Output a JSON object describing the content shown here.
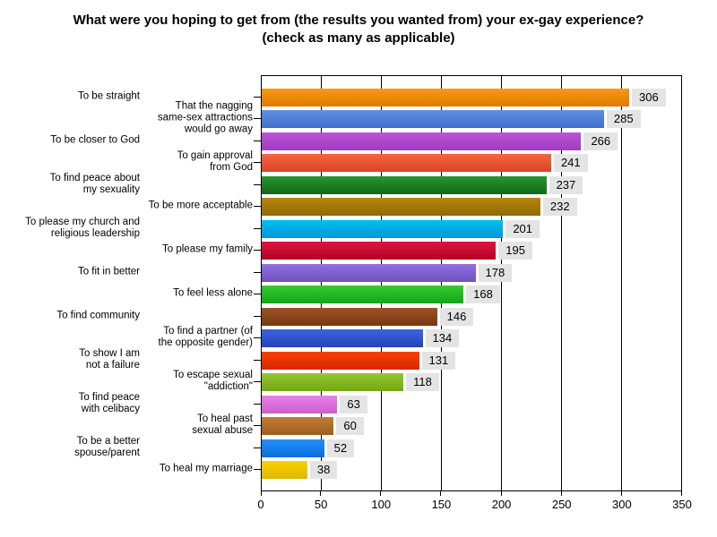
{
  "title": {
    "line1": "What were you hoping to get from (the results you wanted from) your ex-gay experience?",
    "line2": "(check as many as applicable)"
  },
  "chart_data": {
    "type": "bar",
    "orientation": "horizontal",
    "title": "What were you hoping to get from (the results you wanted from) your ex-gay experience? (check as many as applicable)",
    "xlim": [
      0,
      350
    ],
    "x_ticks": [
      0,
      50,
      100,
      150,
      200,
      250,
      300,
      350
    ],
    "grid": true,
    "gridline_color": "#000000",
    "value_label_bg": "#e4e4e4",
    "bars": [
      {
        "label": "To be straight",
        "lines": [
          "To be straight"
        ],
        "column": "far",
        "value": 306,
        "color_top": "#f59a14",
        "color_bottom": "#e07a00"
      },
      {
        "label": "That the nagging same-sex attractions would go away",
        "lines": [
          "That the nagging",
          "same-sex attractions",
          "would go away"
        ],
        "column": "near",
        "value": 285,
        "color_top": "#5e90e2",
        "color_bottom": "#3f6fcc"
      },
      {
        "label": "To be closer to God",
        "lines": [
          "To be closer to God"
        ],
        "column": "far",
        "value": 266,
        "color_top": "#bc55d8",
        "color_bottom": "#9e3cbe"
      },
      {
        "label": "To gain approval from God",
        "lines": [
          "To gain approval",
          "from God"
        ],
        "column": "near",
        "value": 241,
        "color_top": "#f6653f",
        "color_bottom": "#dc4428"
      },
      {
        "label": "To find peace about my sexuality",
        "lines": [
          "To find peace about",
          "my sexuality"
        ],
        "column": "far",
        "value": 237,
        "color_top": "#2a9330",
        "color_bottom": "#0e6c14"
      },
      {
        "label": "To be more acceptable",
        "lines": [
          "To be more acceptable"
        ],
        "column": "near",
        "value": 232,
        "color_top": "#b8860b",
        "color_bottom": "#8f6a06"
      },
      {
        "label": "To please my church and religious leadership",
        "lines": [
          "To please my church and",
          "religious leadership"
        ],
        "column": "far",
        "value": 201,
        "color_top": "#00bef2",
        "color_bottom": "#0098d8"
      },
      {
        "label": "To please my family",
        "lines": [
          "To please my family"
        ],
        "column": "near",
        "value": 195,
        "color_top": "#de1440",
        "color_bottom": "#b00523"
      },
      {
        "label": "To fit in better",
        "lines": [
          "To fit in better"
        ],
        "column": "far",
        "value": 178,
        "color_top": "#9272de",
        "color_bottom": "#7050c0"
      },
      {
        "label": "To feel less alone",
        "lines": [
          "To feel less alone"
        ],
        "column": "near",
        "value": 168,
        "color_top": "#33cc33",
        "color_bottom": "#15a415"
      },
      {
        "label": "To find community",
        "lines": [
          "To find community"
        ],
        "column": "far",
        "value": 146,
        "color_top": "#9b5228",
        "color_bottom": "#77380f"
      },
      {
        "label": "To find a partner (of the opposite gender)",
        "lines": [
          "To find a partner (of",
          "the opposite gender)"
        ],
        "column": "near",
        "value": 134,
        "color_top": "#3c64e0",
        "color_bottom": "#2442b8"
      },
      {
        "label": "To show I am not a failure",
        "lines": [
          "To show I am",
          "not a failure"
        ],
        "column": "far",
        "value": 131,
        "color_top": "#fa4000",
        "color_bottom": "#d82700"
      },
      {
        "label": "To escape sexual \"addiction\"",
        "lines": [
          "To escape sexual",
          "\"addiction\""
        ],
        "column": "near",
        "value": 118,
        "color_top": "#92c832",
        "color_bottom": "#74a614"
      },
      {
        "label": "To find peace with celibacy",
        "lines": [
          "To find peace",
          "with celibacy"
        ],
        "column": "far",
        "value": 63,
        "color_top": "#ea80ea",
        "color_bottom": "#ce5ece"
      },
      {
        "label": "To heal past sexual abuse",
        "lines": [
          "To heal past",
          "sexual abuse"
        ],
        "column": "near",
        "value": 60,
        "color_top": "#c37c38",
        "color_bottom": "#9e5e1e"
      },
      {
        "label": "To be a better spouse/parent",
        "lines": [
          "To be a better",
          "spouse/parent"
        ],
        "column": "far",
        "value": 52,
        "color_top": "#2490f8",
        "color_bottom": "#0a6cde"
      },
      {
        "label": "To heal my marriage",
        "lines": [
          "To heal my marriage"
        ],
        "column": "near",
        "value": 38,
        "color_top": "#f8d200",
        "color_bottom": "#dfb700"
      }
    ]
  }
}
